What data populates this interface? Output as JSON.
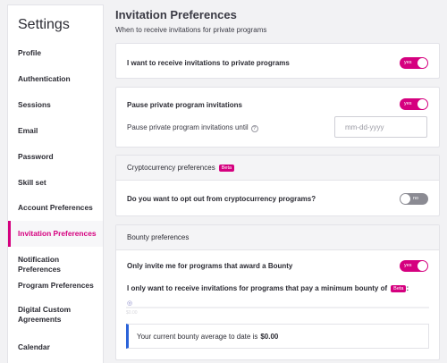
{
  "sidebar": {
    "title": "Settings",
    "items": [
      {
        "label": "Profile"
      },
      {
        "label": "Authentication"
      },
      {
        "label": "Sessions"
      },
      {
        "label": "Email"
      },
      {
        "label": "Password"
      },
      {
        "label": "Skill set"
      },
      {
        "label": "Account Preferences"
      },
      {
        "label": "Invitation Preferences"
      },
      {
        "label": "Notification Preferences"
      },
      {
        "label": "Program Preferences"
      },
      {
        "label": "Digital Custom Agreements"
      },
      {
        "label": "Calendar"
      }
    ],
    "active_index": 7
  },
  "page": {
    "title": "Invitation Preferences",
    "subtitle": "When to receive invitations for private programs"
  },
  "private_invites": {
    "label": "I want to receive invitations to private programs",
    "toggle_label": "yes",
    "enabled": true
  },
  "pause": {
    "label": "Pause private program invitations",
    "toggle_label": "yes",
    "enabled": true,
    "until_label": "Pause private program invitations until",
    "help_icon": "?",
    "date_placeholder": "mm-dd-yyyy"
  },
  "crypto": {
    "header": "Cryptocurrency preferences",
    "beta": "Beta",
    "question": "Do you want to opt out from cryptocurrency programs?",
    "toggle_label": "no",
    "enabled": false
  },
  "bounty": {
    "header": "Bounty preferences",
    "award_label": "Only invite me for programs that award a Bounty",
    "toggle_label": "yes",
    "enabled": true,
    "minimum_label": "I only want to receive invitations for programs that pay a minimum bounty of",
    "beta": "Beta",
    "colon": ":",
    "slider_handle": "◎",
    "slider_value": "$0.00",
    "slider_level": 0,
    "average_text": "Your current bounty average to date is",
    "average_value": "$0.00"
  },
  "colors": {
    "accent": "#d5007f",
    "info_border": "#2b63d9",
    "toggle_off": "#8b8b93"
  }
}
